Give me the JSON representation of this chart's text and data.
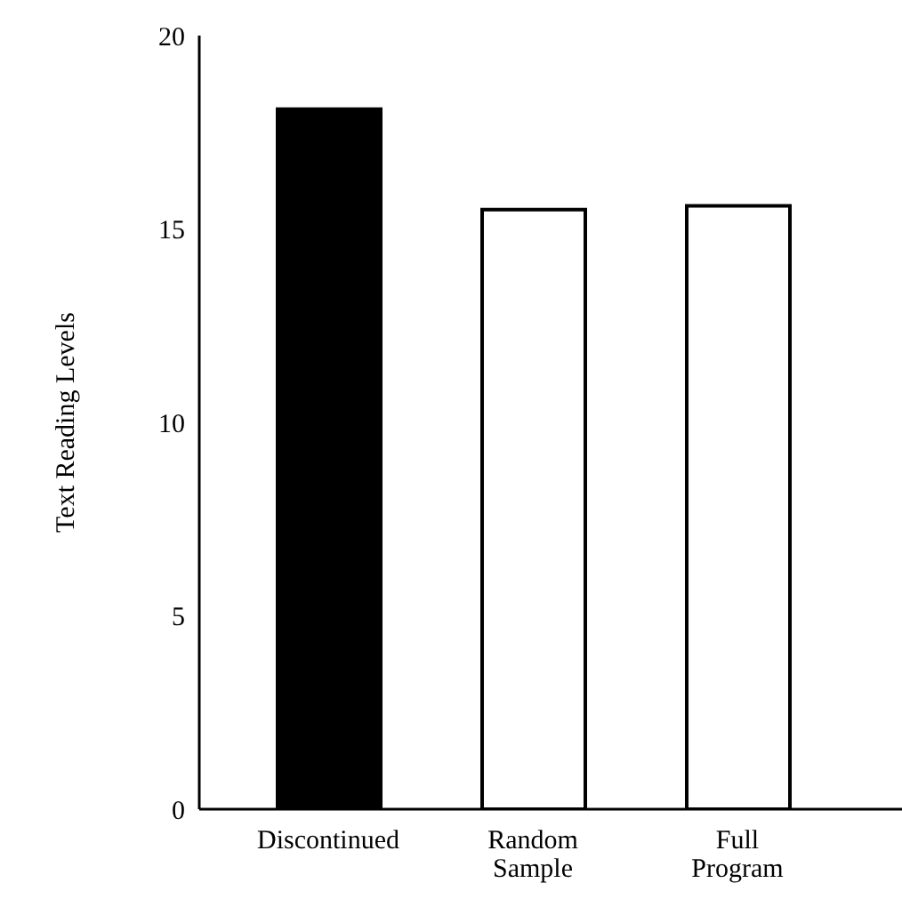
{
  "chart_data": {
    "type": "bar",
    "ylabel": "Text Reading Levels",
    "categories": [
      "Discontinued",
      "Random Sample",
      "Full Program"
    ],
    "values": [
      18.1,
      15.5,
      15.6
    ],
    "colors": [
      "#000000",
      "#ffffff",
      "#ffffff"
    ],
    "ylim": [
      0,
      20
    ],
    "yticks": [
      0,
      5,
      10,
      15,
      20
    ],
    "grid": false,
    "legend": false
  }
}
